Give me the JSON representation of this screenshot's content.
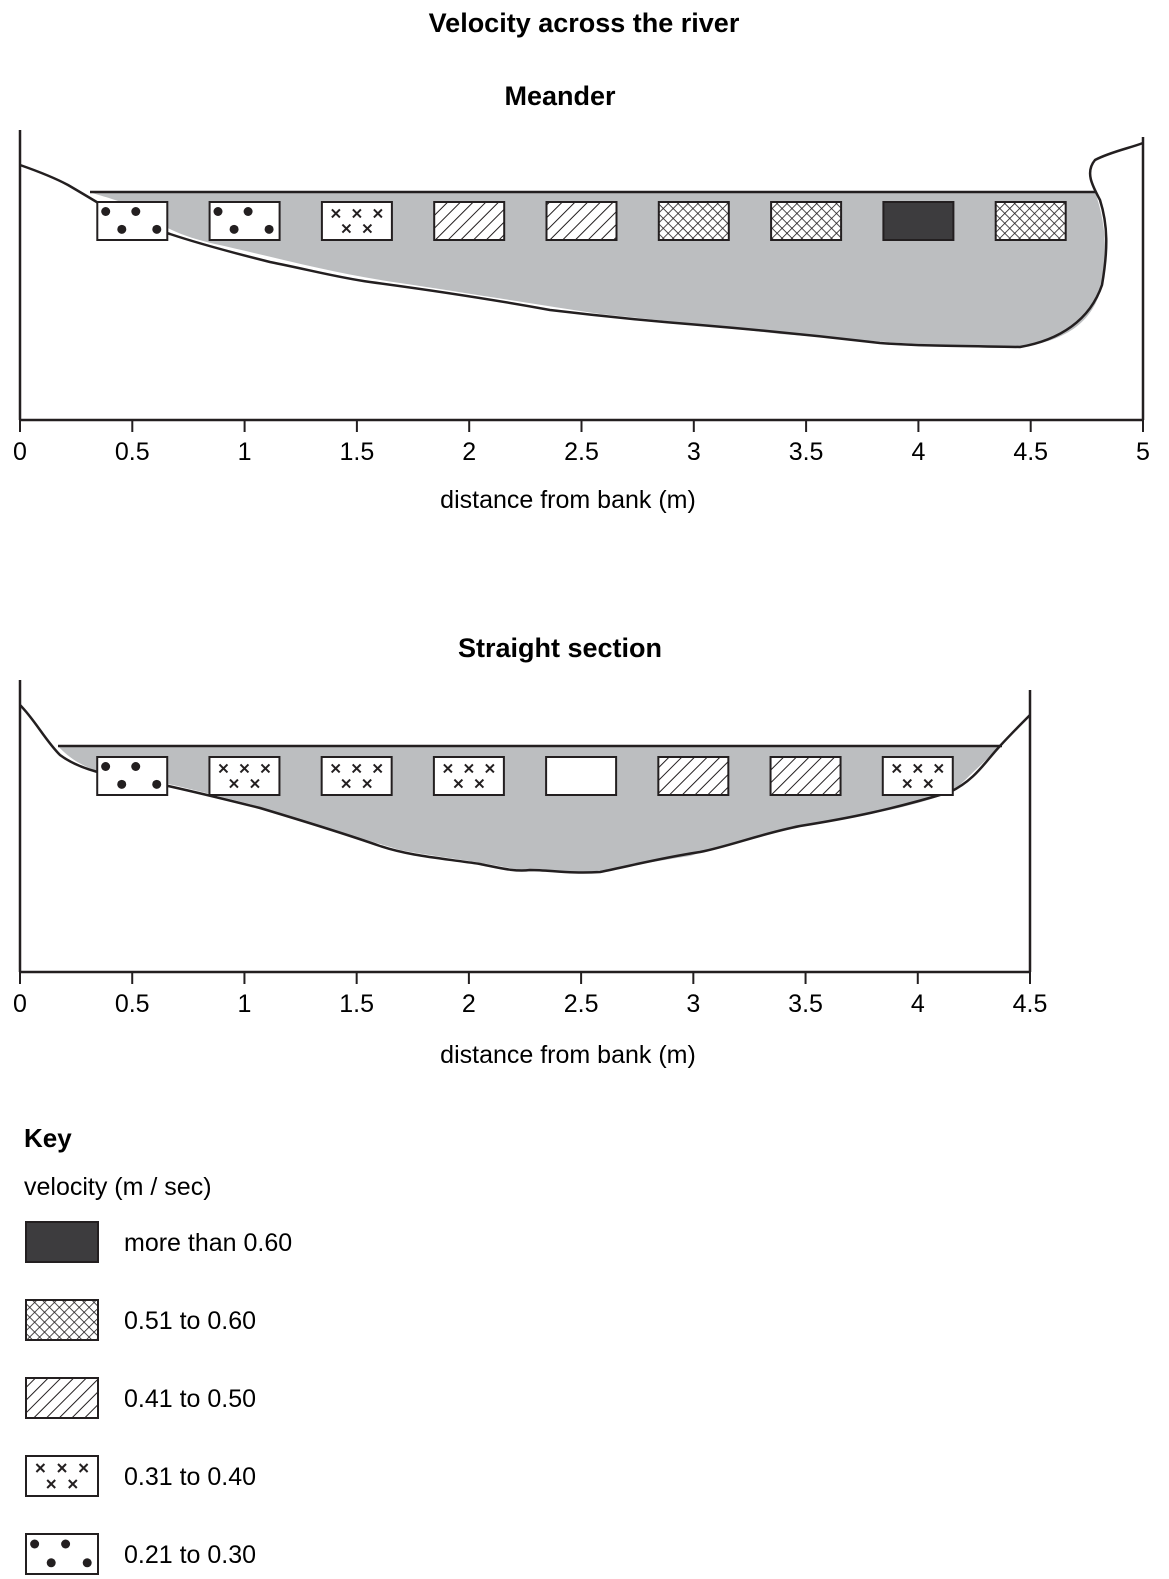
{
  "page_title": "Velocity across the river",
  "key": {
    "title": "Key",
    "subtitle": "velocity (m / sec)",
    "items": [
      {
        "id": "v_gt060",
        "label": "more than 0.60",
        "icon": "solid-dark-swatch"
      },
      {
        "id": "v_051_060",
        "label": "0.51 to 0.60",
        "icon": "cross-hatch-swatch"
      },
      {
        "id": "v_041_050",
        "label": "0.41 to 0.50",
        "icon": "diagonal-hatch-swatch"
      },
      {
        "id": "v_031_040",
        "label": "0.31 to 0.40",
        "icon": "cross-marks-swatch"
      },
      {
        "id": "v_021_030",
        "label": "0.21 to 0.30",
        "icon": "dots-swatch"
      }
    ]
  },
  "colors": {
    "water": "#bcbec0",
    "ink": "#231f20",
    "dark_fill": "#3d3c3e"
  },
  "chart_data": [
    {
      "type": "bar",
      "title": "Meander",
      "xlabel": "distance from bank (m)",
      "xlim": [
        0,
        5
      ],
      "x_ticks": [
        "0",
        "0.5",
        "1",
        "1.5",
        "2",
        "2.5",
        "3",
        "3.5",
        "4",
        "4.5",
        "5"
      ],
      "measurements": [
        {
          "distance": 0.5,
          "velocity_class": "v_021_030"
        },
        {
          "distance": 1.0,
          "velocity_class": "v_021_030"
        },
        {
          "distance": 1.5,
          "velocity_class": "v_031_040"
        },
        {
          "distance": 2.0,
          "velocity_class": "v_041_050"
        },
        {
          "distance": 2.5,
          "velocity_class": "v_041_050"
        },
        {
          "distance": 3.0,
          "velocity_class": "v_051_060"
        },
        {
          "distance": 3.5,
          "velocity_class": "v_051_060"
        },
        {
          "distance": 4.0,
          "velocity_class": "v_gt060"
        },
        {
          "distance": 4.5,
          "velocity_class": "v_051_060"
        }
      ]
    },
    {
      "type": "bar",
      "title": "Straight section",
      "xlabel": "distance from bank (m)",
      "xlim": [
        0,
        4.5
      ],
      "x_ticks": [
        "0",
        "0.5",
        "1",
        "1.5",
        "2",
        "2.5",
        "3",
        "3.5",
        "4",
        "4.5"
      ],
      "measurements": [
        {
          "distance": 0.5,
          "velocity_class": "v_021_030"
        },
        {
          "distance": 1.0,
          "velocity_class": "v_031_040"
        },
        {
          "distance": 1.5,
          "velocity_class": "v_031_040"
        },
        {
          "distance": 2.0,
          "velocity_class": "v_031_040"
        },
        {
          "distance": 2.5,
          "velocity_class": null
        },
        {
          "distance": 3.0,
          "velocity_class": "v_041_050"
        },
        {
          "distance": 3.5,
          "velocity_class": "v_041_050"
        },
        {
          "distance": 4.0,
          "velocity_class": "v_031_040"
        }
      ]
    }
  ]
}
